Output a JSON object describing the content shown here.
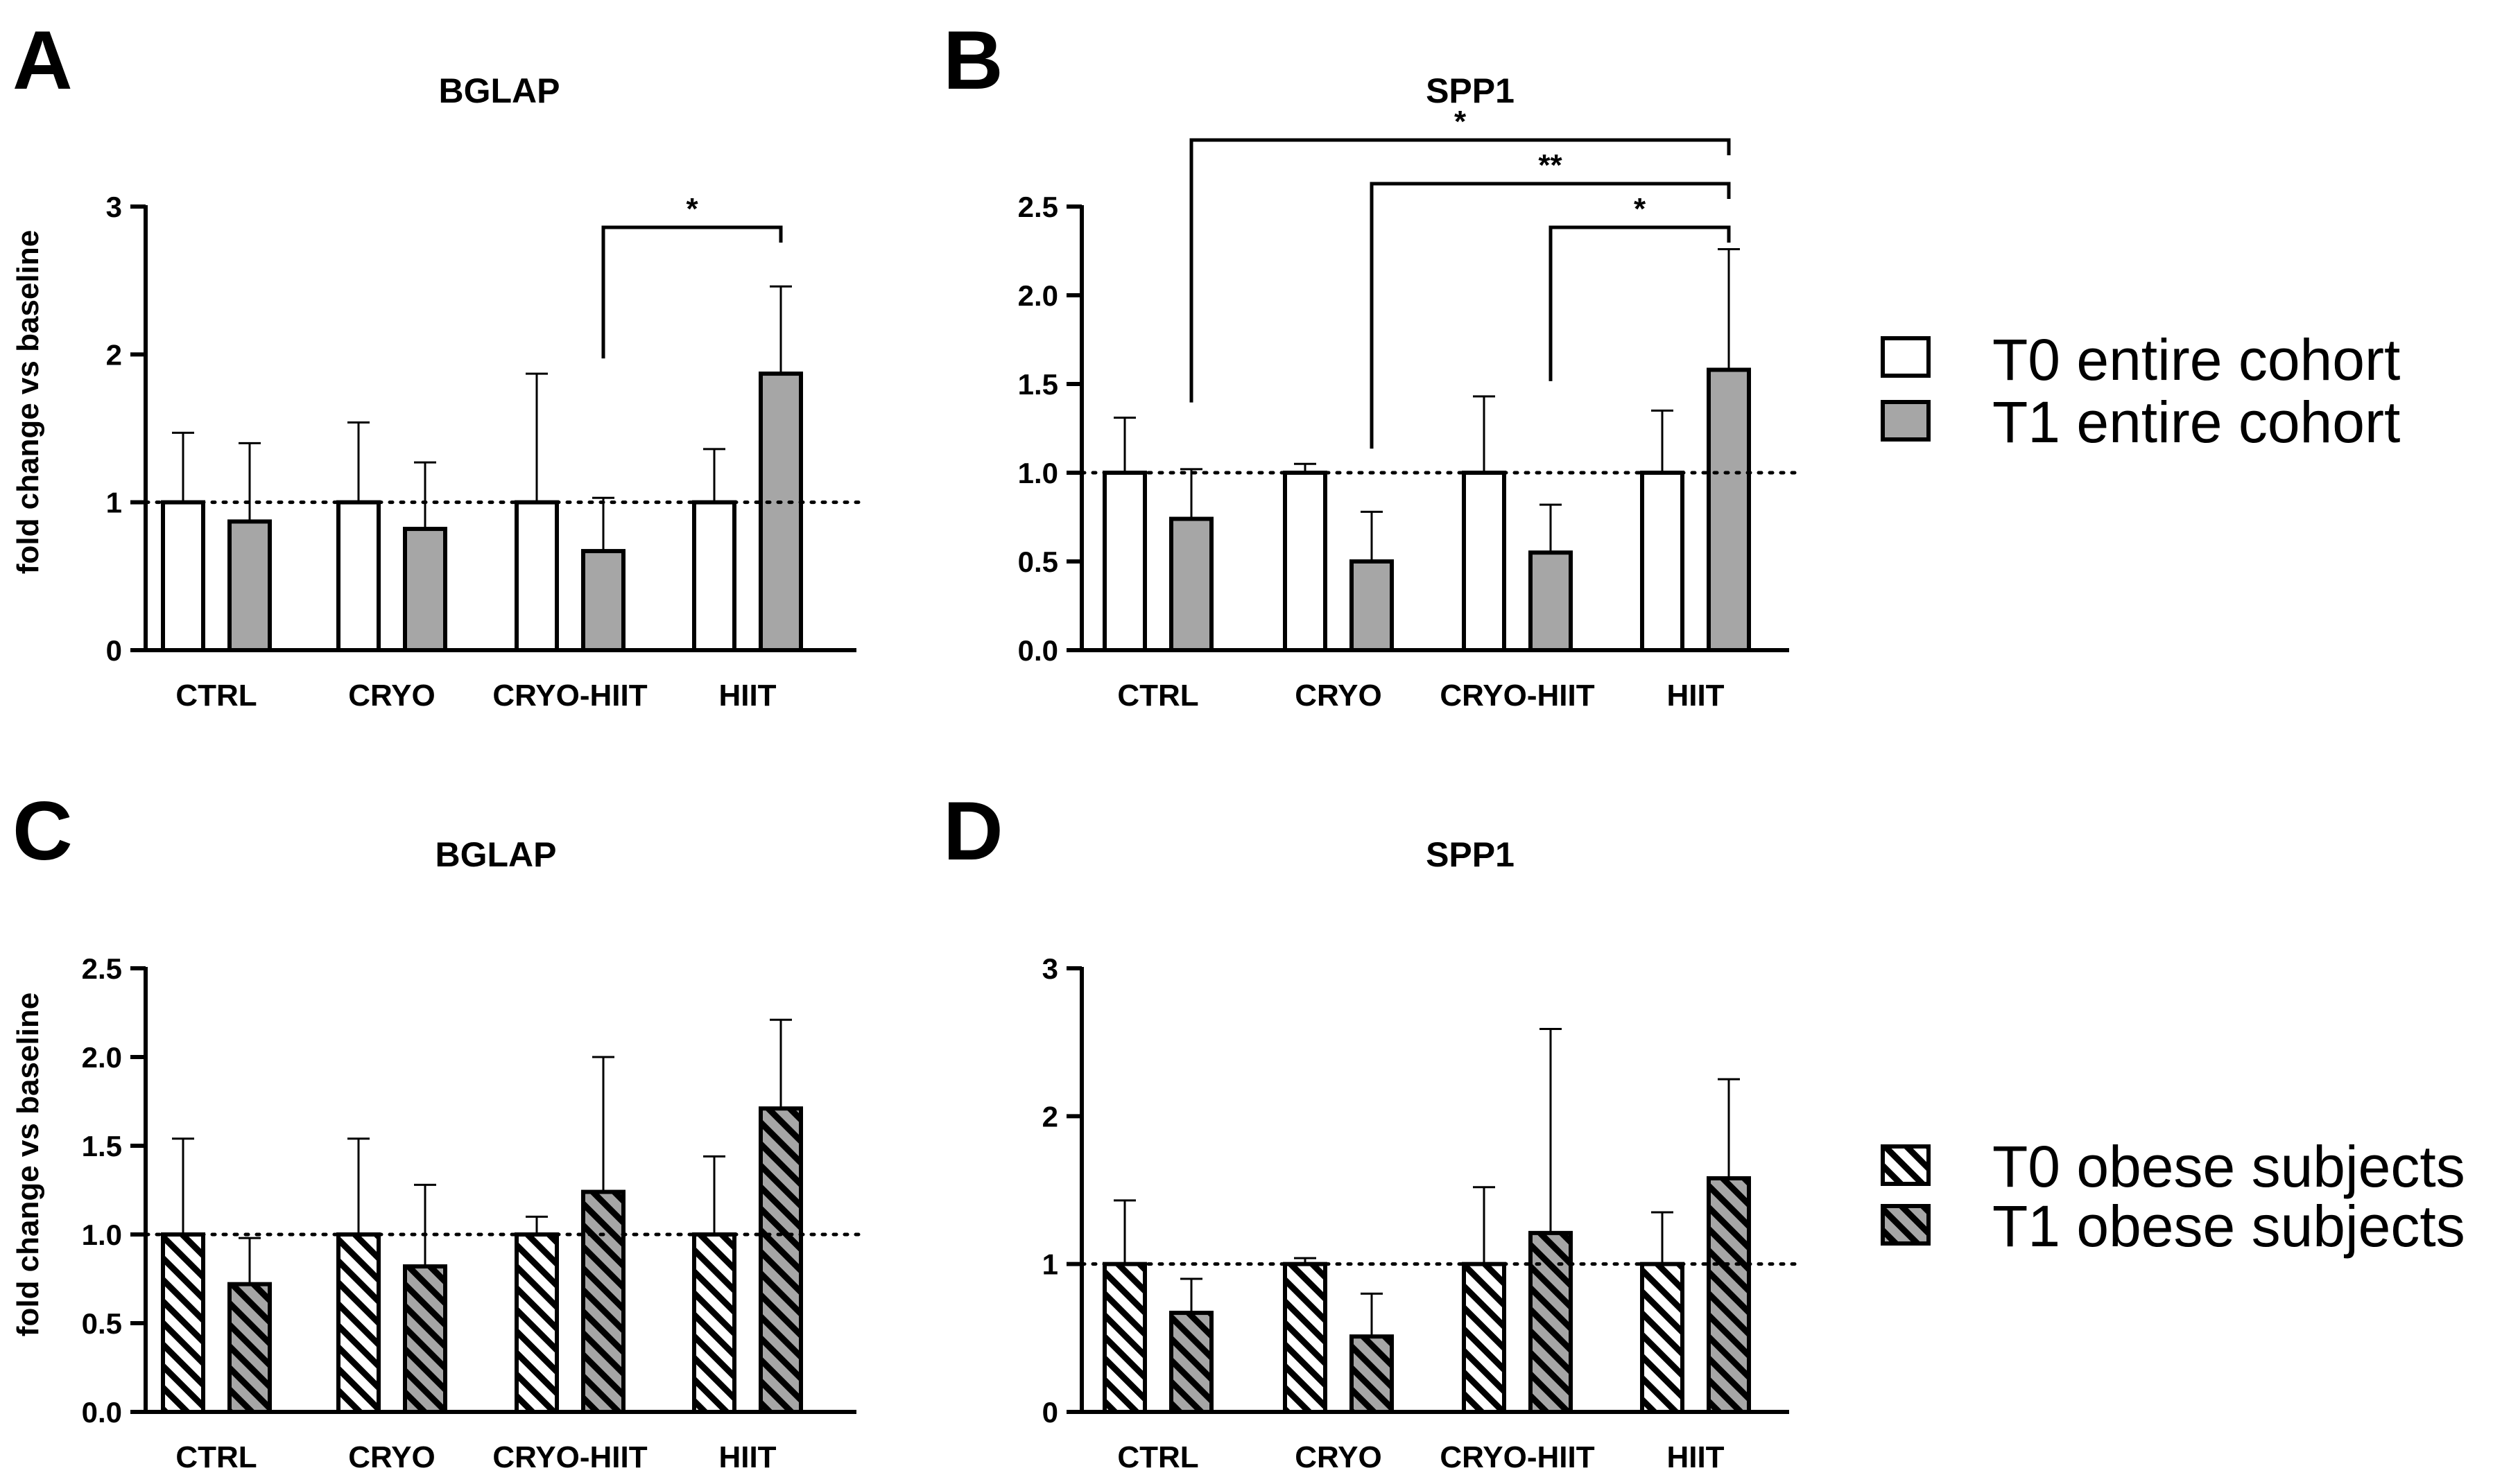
{
  "colors": {
    "t0": "#ffffff",
    "t1": "#a6a6a6",
    "stroke": "#000000"
  },
  "legend": {
    "entire": [
      "T0 entire cohort",
      "T1 entire cohort"
    ],
    "obese": [
      "T0 obese subjects",
      "T1 obese subjects"
    ]
  },
  "chart_data": [
    {
      "panel": "A",
      "type": "bar",
      "title": "BGLAP",
      "ylabel": "fold change vs baseline",
      "ylim": [
        0,
        3
      ],
      "yticks": [
        "0",
        "1",
        "2",
        "3"
      ],
      "baseline": 1,
      "pattern": "solid",
      "categories": [
        "CTRL",
        "CRYO",
        "CRYO-HIIT",
        "HIIT"
      ],
      "series": [
        {
          "name": "T0 entire cohort",
          "values": [
            1,
            1,
            1,
            1
          ],
          "errors": [
            0.47,
            0.54,
            0.87,
            0.36
          ]
        },
        {
          "name": "T1 entire cohort",
          "values": [
            0.87,
            0.82,
            0.67,
            1.87
          ],
          "errors": [
            0.53,
            0.45,
            0.36,
            0.59
          ]
        }
      ],
      "significance": [
        {
          "from": 2,
          "to": 3,
          "label": "*"
        }
      ]
    },
    {
      "panel": "B",
      "type": "bar",
      "title": "SPP1",
      "ylabel": "",
      "ylim": [
        0,
        2.5
      ],
      "yticks": [
        "0.0",
        "0.5",
        "1.0",
        "1.5",
        "2.0",
        "2.5"
      ],
      "baseline": 1,
      "pattern": "solid",
      "categories": [
        "CTRL",
        "CRYO",
        "CRYO-HIIT",
        "HIIT"
      ],
      "series": [
        {
          "name": "T0 entire cohort",
          "values": [
            1,
            1,
            1,
            1
          ],
          "errors": [
            0.31,
            0.05,
            0.43,
            0.35
          ]
        },
        {
          "name": "T1 entire cohort",
          "values": [
            0.74,
            0.5,
            0.55,
            1.58
          ],
          "errors": [
            0.28,
            0.28,
            0.27,
            0.68
          ]
        }
      ],
      "significance": [
        {
          "from": 0,
          "to": 3,
          "label": "*"
        },
        {
          "from": 1,
          "to": 3,
          "label": "**"
        },
        {
          "from": 2,
          "to": 3,
          "label": "*"
        }
      ]
    },
    {
      "panel": "C",
      "type": "bar",
      "title": "BGLAP",
      "ylabel": "fold change vs baseline",
      "ylim": [
        0,
        2.5
      ],
      "yticks": [
        "0.0",
        "0.5",
        "1.0",
        "1.5",
        "2.0",
        "2.5"
      ],
      "baseline": 1,
      "pattern": "hatched",
      "categories": [
        "CTRL",
        "CRYO",
        "CRYO-HIIT",
        "HIIT"
      ],
      "series": [
        {
          "name": "T0 obese subjects",
          "values": [
            1,
            1,
            1,
            1
          ],
          "errors": [
            0.54,
            0.54,
            0.1,
            0.44
          ]
        },
        {
          "name": "T1 obese subjects",
          "values": [
            0.72,
            0.82,
            1.24,
            1.71
          ],
          "errors": [
            0.26,
            0.46,
            0.76,
            0.5
          ]
        }
      ],
      "significance": []
    },
    {
      "panel": "D",
      "type": "bar",
      "title": "SPP1",
      "ylabel": "",
      "ylim": [
        0,
        3
      ],
      "yticks": [
        "0",
        "1",
        "2",
        "3"
      ],
      "baseline": 1,
      "pattern": "hatched",
      "categories": [
        "CTRL",
        "CRYO",
        "CRYO-HIIT",
        "HIIT"
      ],
      "series": [
        {
          "name": "T0 obese subjects",
          "values": [
            1,
            1,
            1,
            1
          ],
          "errors": [
            0.43,
            0.04,
            0.52,
            0.35
          ]
        },
        {
          "name": "T1 obese subjects",
          "values": [
            0.67,
            0.51,
            1.21,
            1.58
          ],
          "errors": [
            0.23,
            0.29,
            1.38,
            0.67
          ]
        }
      ],
      "significance": []
    }
  ]
}
